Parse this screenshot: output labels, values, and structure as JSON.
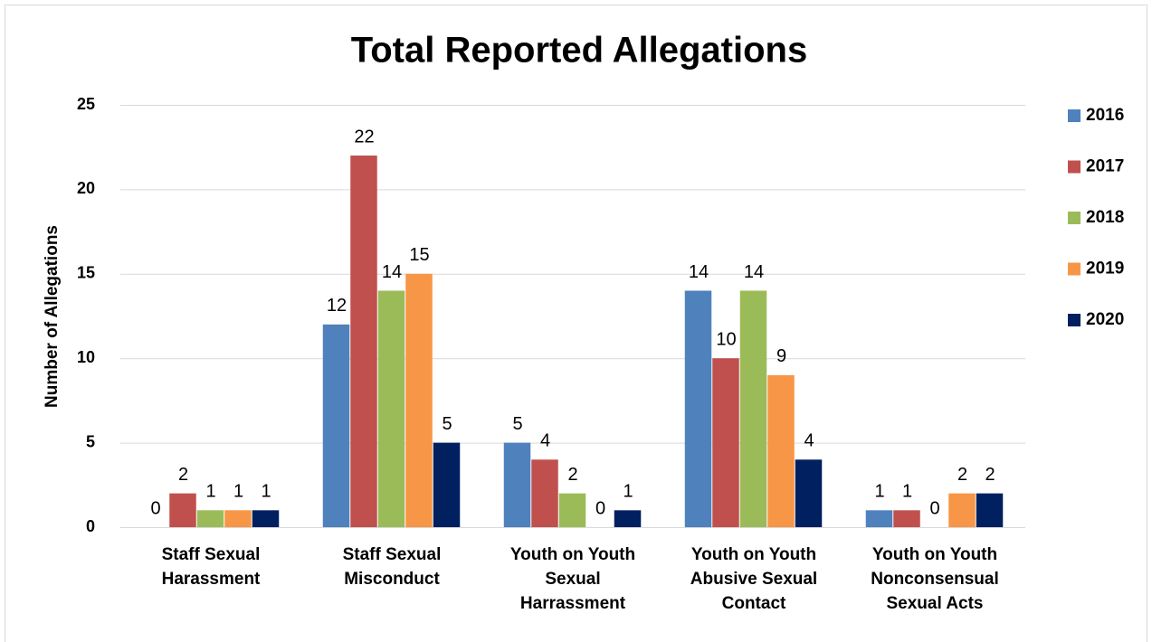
{
  "chart_data": {
    "type": "bar",
    "title": "Total Reported Allegations",
    "y_label": "Number of Allegations",
    "categories": [
      "Staff Sexual Harassment",
      "Staff Sexual Misconduct",
      "Youth on Youth Sexual Harrassment",
      "Youth on Youth Abusive Sexual Contact",
      "Youth on Youth Nonconsensual Sexual Acts"
    ],
    "series": [
      {
        "name": "2016",
        "color": "#4f81bd",
        "values": [
          0,
          12,
          5,
          14,
          1
        ]
      },
      {
        "name": "2017",
        "color": "#c0504d",
        "values": [
          2,
          22,
          4,
          10,
          1
        ]
      },
      {
        "name": "2018",
        "color": "#9bbb59",
        "values": [
          1,
          14,
          2,
          14,
          0
        ]
      },
      {
        "name": "2019",
        "color": "#f79646",
        "values": [
          1,
          15,
          0,
          9,
          2
        ]
      },
      {
        "name": "2020",
        "color": "#002060",
        "values": [
          1,
          5,
          1,
          4,
          2
        ]
      }
    ],
    "ylim": [
      0,
      25
    ],
    "yticks": [
      0,
      5,
      10,
      15,
      20,
      25
    ],
    "grid": true,
    "legend": "right"
  }
}
